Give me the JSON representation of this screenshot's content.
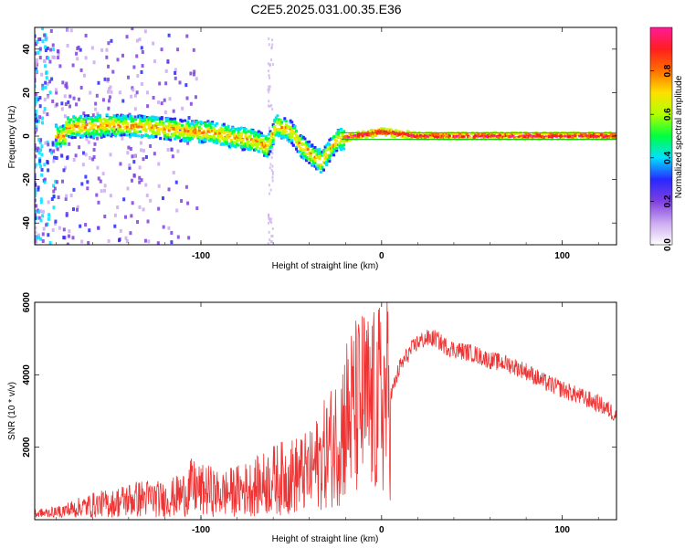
{
  "title": "C2E5.2025.031.00.35.E36",
  "colors": {
    "snr_line": "#ef3232",
    "frame": "#000000",
    "reference_line": "#00c000",
    "colorbar_stops": [
      "#ffffff",
      "#ccaaf0",
      "#7f3fe0",
      "#2828ff",
      "#00e0ff",
      "#00ff40",
      "#b0ff00",
      "#ffe000",
      "#ff7000",
      "#ff1e1e",
      "#ff1a99"
    ]
  },
  "chart_data": [
    {
      "type": "heatmap",
      "xlabel": "Height of straight line (km)",
      "ylabel": "Frequency (Hz)",
      "colorbar_label": "Normalized spectral amplitude",
      "xlim": [
        -192,
        130
      ],
      "ylim": [
        -50,
        50
      ],
      "xticks": [
        -100,
        0,
        100
      ],
      "yticks": [
        -40,
        -20,
        0,
        20,
        40
      ],
      "colorbar_range": [
        0,
        1
      ],
      "colorbar_ticks": [
        "0.0",
        "0.2",
        "0.4",
        "0.6",
        "0.8"
      ],
      "ridge": {
        "description_points": [
          {
            "x": -175,
            "y": 4
          },
          {
            "x": -150,
            "y": 5
          },
          {
            "x": -125,
            "y": 4
          },
          {
            "x": -105,
            "y": 2
          },
          {
            "x": -95,
            "y": 2
          },
          {
            "x": -80,
            "y": -1
          },
          {
            "x": -70,
            "y": -2
          },
          {
            "x": -63,
            "y": -5
          },
          {
            "x": -58,
            "y": 5
          },
          {
            "x": -50,
            "y": 2
          },
          {
            "x": -45,
            "y": -4
          },
          {
            "x": -38,
            "y": -9
          },
          {
            "x": -33,
            "y": -12
          },
          {
            "x": -25,
            "y": -2
          },
          {
            "x": -15,
            "y": 0
          },
          {
            "x": 0,
            "y": 2
          },
          {
            "x": 20,
            "y": 0
          },
          {
            "x": 60,
            "y": 0
          },
          {
            "x": 100,
            "y": 0
          },
          {
            "x": 130,
            "y": 0
          }
        ],
        "reference_line_hz": [
          1.5,
          -1.5
        ]
      }
    },
    {
      "type": "line",
      "xlabel": "Height of straight line (km)",
      "ylabel": "SNR (10 * v/v)",
      "xlim": [
        -192,
        130
      ],
      "ylim": [
        0,
        6000
      ],
      "xticks": [
        -100,
        0,
        100
      ],
      "yticks": [
        2000,
        4000,
        6000
      ],
      "series": [
        {
          "x": [
            -192,
            -180,
            -170,
            -160,
            -150,
            -140,
            -130,
            -120,
            -110,
            -105,
            -100,
            -95,
            -90,
            -80,
            -70,
            -60,
            -50,
            -40,
            -35,
            -30,
            -25,
            -20,
            -15,
            -10,
            -5,
            0,
            5,
            10,
            15,
            20,
            25,
            30,
            35,
            40,
            50,
            60,
            70,
            80,
            90,
            100,
            110,
            120,
            130
          ],
          "y": [
            150,
            200,
            300,
            400,
            450,
            550,
            600,
            550,
            700,
            900,
            800,
            800,
            700,
            800,
            900,
            1100,
            1200,
            1300,
            1600,
            1900,
            2200,
            2800,
            3000,
            3200,
            3100,
            3300,
            3400,
            4200,
            4600,
            4900,
            5000,
            5000,
            4800,
            4700,
            4600,
            4400,
            4300,
            4100,
            3800,
            3600,
            3400,
            3200,
            2900
          ]
        }
      ]
    }
  ]
}
